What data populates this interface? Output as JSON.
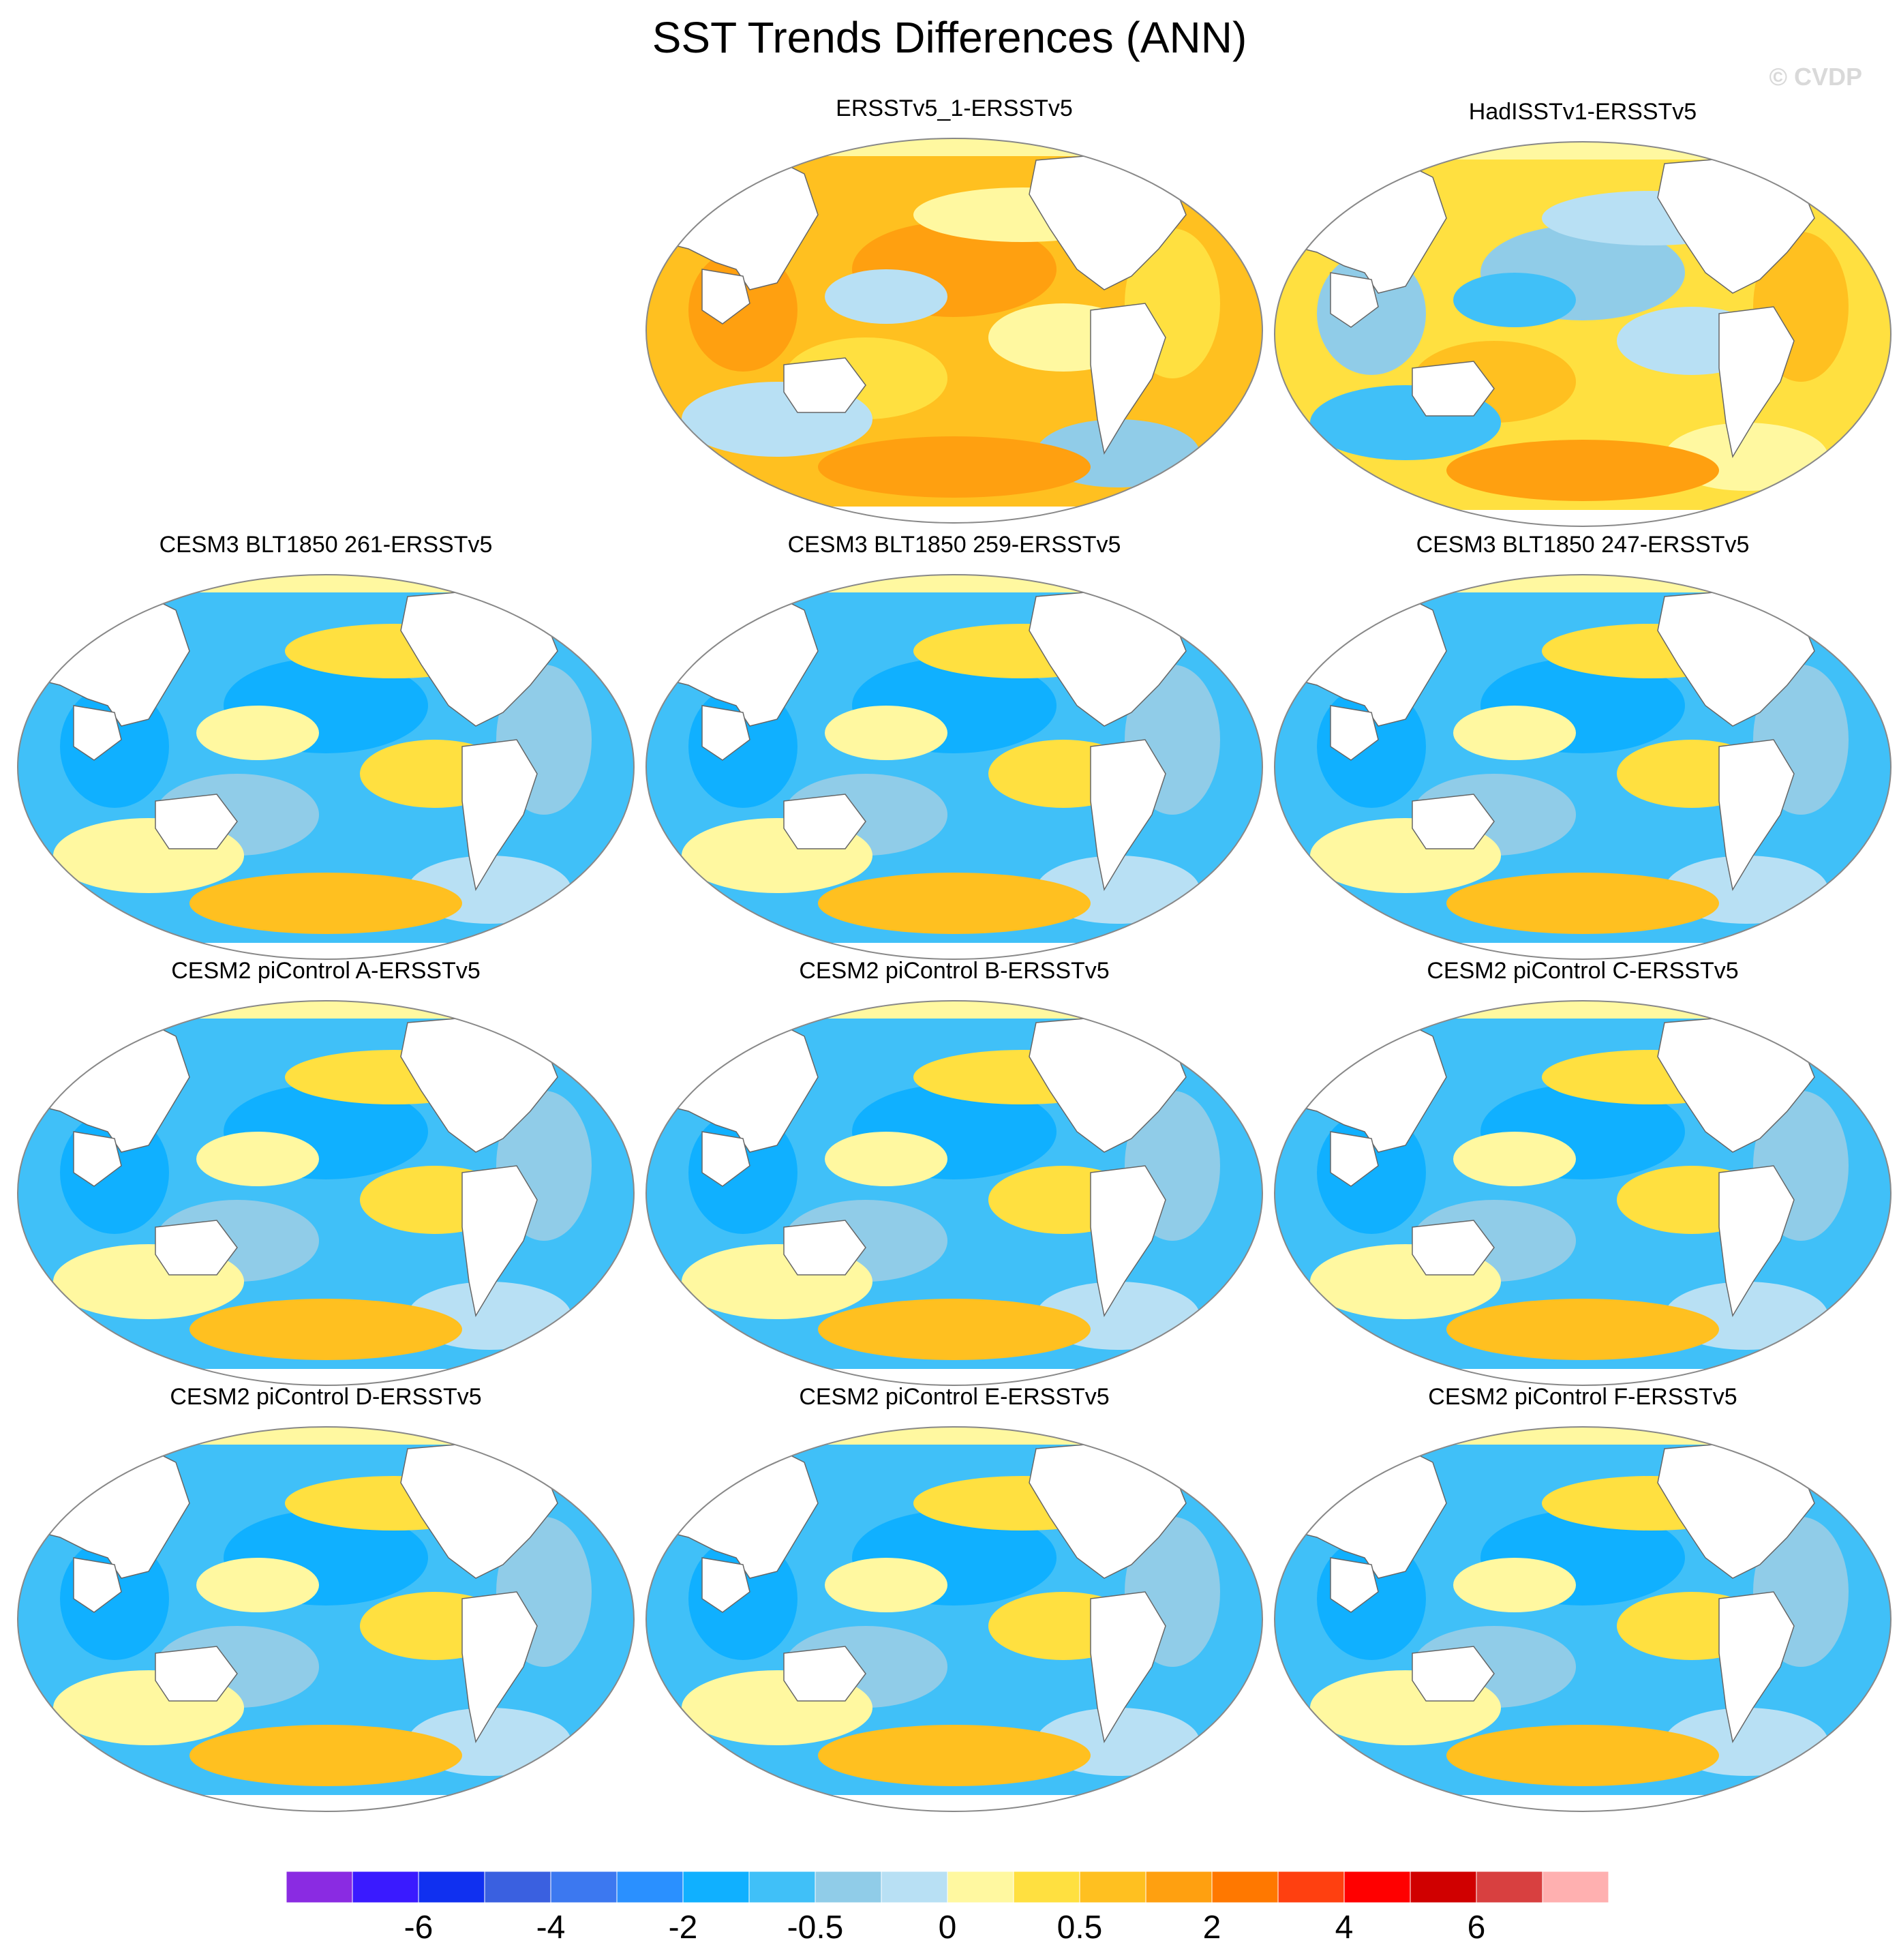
{
  "title": "SST Trends Differences (ANN)",
  "watermark": "© CVDP",
  "panels": [
    {
      "label": "ERSSTv5_1-ERSSTv5",
      "palette": "warm"
    },
    {
      "label": "HadISSTv1-ERSSTv5",
      "palette": "mixed-warm"
    },
    {
      "label": "CESM3 BLT1850 261-ERSSTv5",
      "palette": "cool"
    },
    {
      "label": "CESM3 BLT1850 259-ERSSTv5",
      "palette": "cool"
    },
    {
      "label": "CESM3 BLT1850 247-ERSSTv5",
      "palette": "cool"
    },
    {
      "label": "CESM2 piControl A-ERSSTv5",
      "palette": "cool"
    },
    {
      "label": "CESM2 piControl B-ERSSTv5",
      "palette": "cool"
    },
    {
      "label": "CESM2 piControl C-ERSSTv5",
      "palette": "cool"
    },
    {
      "label": "CESM2 piControl D-ERSSTv5",
      "palette": "cool"
    },
    {
      "label": "CESM2 piControl E-ERSSTv5",
      "palette": "cool"
    },
    {
      "label": "CESM2 piControl F-ERSSTv5",
      "palette": "cool"
    }
  ],
  "colorbar": {
    "colors": [
      "#8a2be2",
      "#3a1aff",
      "#1030f0",
      "#3a60e0",
      "#3c78f0",
      "#2a90ff",
      "#10b0ff",
      "#40c0f8",
      "#90cce8",
      "#b8e0f4",
      "#fff8a0",
      "#ffe040",
      "#ffc020",
      "#ffa010",
      "#ff7800",
      "#ff4010",
      "#ff0000",
      "#d00000",
      "#d84040",
      "#ffb0b0"
    ],
    "labels": [
      "-6",
      "-4",
      "-2",
      "-0.5",
      "0",
      "0.5",
      "2",
      "4",
      "6"
    ]
  }
}
